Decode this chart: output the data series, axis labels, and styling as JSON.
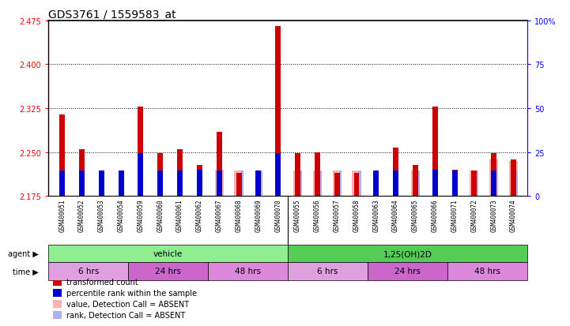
{
  "title": "GDS3761 / 1559583_at",
  "ylim": [
    2.175,
    2.475
  ],
  "yticks": [
    2.175,
    2.25,
    2.325,
    2.4,
    2.475
  ],
  "y2lim": [
    0,
    100
  ],
  "y2ticks": [
    0,
    25,
    50,
    75,
    100
  ],
  "y2labels": [
    "0",
    "25",
    "50",
    "75",
    "100%"
  ],
  "samples": [
    "GSM400051",
    "GSM400052",
    "GSM400053",
    "GSM400054",
    "GSM400059",
    "GSM400060",
    "GSM400061",
    "GSM400062",
    "GSM400067",
    "GSM400068",
    "GSM400069",
    "GSM400070",
    "GSM400055",
    "GSM400056",
    "GSM400057",
    "GSM400058",
    "GSM400063",
    "GSM400064",
    "GSM400065",
    "GSM400066",
    "GSM400071",
    "GSM400072",
    "GSM400073",
    "GSM400074"
  ],
  "red_values": [
    2.315,
    2.255,
    2.218,
    2.218,
    2.328,
    2.248,
    2.255,
    2.228,
    2.285,
    2.215,
    2.218,
    2.465,
    2.248,
    2.25,
    2.215,
    2.215,
    2.218,
    2.258,
    2.228,
    2.328,
    2.22,
    2.218,
    2.248,
    2.238
  ],
  "blue_values": [
    2.218,
    2.218,
    2.218,
    2.218,
    2.248,
    2.218,
    2.218,
    2.22,
    2.218,
    0,
    2.218,
    2.248,
    0,
    0,
    0,
    0,
    2.218,
    2.218,
    0,
    2.22,
    2.218,
    0,
    2.218,
    0
  ],
  "pink_values": [
    0,
    0,
    0,
    0,
    0,
    0,
    0,
    0,
    2.22,
    2.218,
    0,
    0,
    2.218,
    2.218,
    2.218,
    2.218,
    0,
    0,
    2.218,
    0,
    0,
    2.218,
    2.238,
    2.235
  ],
  "lightblue_values": [
    0,
    0,
    0,
    0,
    0,
    0,
    0,
    0,
    0,
    2.218,
    2.218,
    0,
    2.218,
    2.218,
    2.218,
    2.218,
    0,
    0,
    2.218,
    0,
    0,
    2.218,
    0,
    2.218
  ],
  "base": 2.175,
  "agent_groups": [
    {
      "label": "vehicle",
      "start": 0,
      "end": 12,
      "color": "#90ee90"
    },
    {
      "label": "1,25(OH)2D",
      "start": 12,
      "end": 24,
      "color": "#55cc55"
    }
  ],
  "time_groups": [
    {
      "label": "6 hrs",
      "start": 0,
      "end": 4,
      "color": "#e0a0e0"
    },
    {
      "label": "24 hrs",
      "start": 4,
      "end": 8,
      "color": "#cc66cc"
    },
    {
      "label": "48 hrs",
      "start": 8,
      "end": 12,
      "color": "#dd88dd"
    },
    {
      "label": "6 hrs",
      "start": 12,
      "end": 16,
      "color": "#e0a0e0"
    },
    {
      "label": "24 hrs",
      "start": 16,
      "end": 20,
      "color": "#cc66cc"
    },
    {
      "label": "48 hrs",
      "start": 20,
      "end": 24,
      "color": "#dd88dd"
    }
  ],
  "legend_items": [
    {
      "color": "#cc0000",
      "label": "transformed count"
    },
    {
      "color": "#0000cc",
      "label": "percentile rank within the sample"
    },
    {
      "color": "#ffb0b0",
      "label": "value, Detection Call = ABSENT"
    },
    {
      "color": "#b0b0ee",
      "label": "rank, Detection Call = ABSENT"
    }
  ],
  "red_color": "#cc0000",
  "blue_color": "#0000cc",
  "pink_color": "#ffb0b0",
  "lightblue_color": "#b0b0ee",
  "label_bg_color": "#cccccc"
}
